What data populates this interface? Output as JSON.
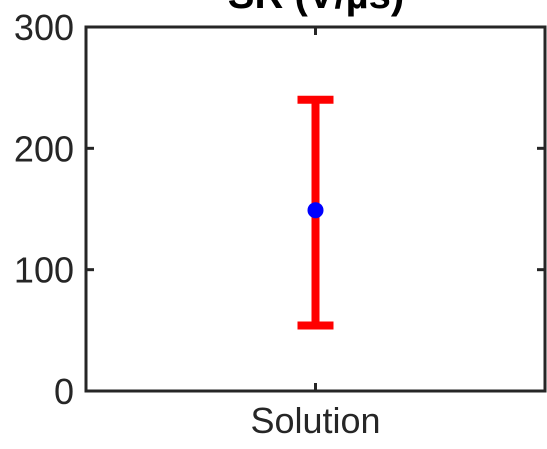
{
  "chart_data": {
    "type": "errorbar",
    "title": "SR (V/µs)",
    "xlabel": "",
    "ylabel": "",
    "categories": [
      "Solution"
    ],
    "ylim": [
      0,
      300
    ],
    "yticks": [
      0,
      100,
      200,
      300
    ],
    "grid": false,
    "box": true,
    "series": [
      {
        "values": [
          149
        ],
        "lower": [
          54
        ],
        "upper": [
          240
        ],
        "marker_color": "#0000ff",
        "errorbar_color": "#ff0000"
      }
    ]
  }
}
